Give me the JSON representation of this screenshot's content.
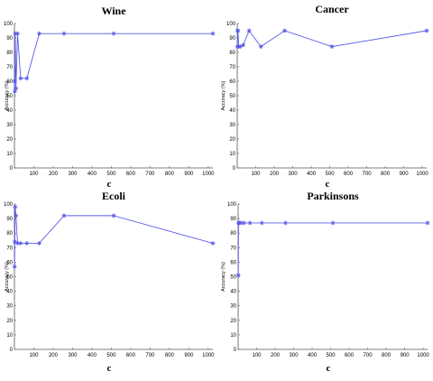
{
  "chart_data": [
    {
      "type": "line",
      "title": "Wine",
      "xlabel": "c",
      "ylabel": "Accuracy (%)",
      "xlim": [
        0,
        1024
      ],
      "ylim": [
        0,
        100
      ],
      "xticks": [
        100,
        200,
        300,
        400,
        500,
        600,
        700,
        800,
        900,
        1000
      ],
      "yticks": [
        0,
        10,
        20,
        30,
        40,
        50,
        60,
        70,
        80,
        90,
        100
      ],
      "grid": false,
      "series": [
        {
          "color": "#5b5be8",
          "marker": "asterisk",
          "x": [
            1,
            2,
            4,
            8,
            16,
            32,
            64,
            128,
            256,
            512,
            1024
          ],
          "y": [
            60,
            53,
            93,
            55,
            93,
            62,
            62,
            93,
            93,
            93,
            93
          ]
        }
      ]
    },
    {
      "type": "line",
      "title": "Cancer",
      "xlabel": "c",
      "ylabel": "Accuracy (%)",
      "xlim": [
        0,
        1024
      ],
      "ylim": [
        0,
        100
      ],
      "xticks": [
        100,
        200,
        300,
        400,
        500,
        600,
        700,
        800,
        900,
        1000
      ],
      "yticks": [
        0,
        10,
        20,
        30,
        40,
        50,
        60,
        70,
        80,
        90,
        100
      ],
      "grid": false,
      "series": [
        {
          "color": "#5b5be8",
          "marker": "asterisk",
          "x": [
            1,
            2,
            4,
            8,
            16,
            32,
            64,
            128,
            256,
            512,
            1024
          ],
          "y": [
            84,
            95,
            95,
            84,
            84,
            85,
            95,
            84,
            95,
            84,
            95
          ]
        }
      ]
    },
    {
      "type": "line",
      "title": "Ecoli",
      "xlabel": "c",
      "ylabel": "Accuracy (%)",
      "xlim": [
        0,
        1024
      ],
      "ylim": [
        0,
        100
      ],
      "xticks": [
        100,
        200,
        300,
        400,
        500,
        600,
        700,
        800,
        900,
        1000
      ],
      "yticks": [
        0,
        10,
        20,
        30,
        40,
        50,
        60,
        70,
        80,
        90,
        100
      ],
      "grid": false,
      "series": [
        {
          "color": "#5b5be8",
          "marker": "asterisk",
          "x": [
            1,
            2,
            4,
            8,
            16,
            32,
            64,
            128,
            256,
            512,
            1024
          ],
          "y": [
            57,
            74,
            98,
            92,
            73,
            73,
            73,
            73,
            92,
            92,
            73
          ]
        }
      ]
    },
    {
      "type": "line",
      "title": "Parkinsons",
      "xlabel": "c",
      "ylabel": "Accuracy (%)",
      "xlim": [
        0,
        1024
      ],
      "ylim": [
        0,
        100
      ],
      "xticks": [
        100,
        200,
        300,
        400,
        500,
        600,
        700,
        800,
        900,
        1000
      ],
      "yticks": [
        0,
        10,
        20,
        30,
        40,
        50,
        60,
        70,
        80,
        90,
        100
      ],
      "grid": false,
      "series": [
        {
          "color": "#5b5be8",
          "marker": "asterisk",
          "x": [
            1,
            2,
            4,
            8,
            16,
            32,
            64,
            128,
            256,
            512,
            1024
          ],
          "y": [
            51,
            87,
            87,
            87,
            87,
            87,
            87,
            87,
            87,
            87,
            87
          ]
        }
      ]
    }
  ]
}
